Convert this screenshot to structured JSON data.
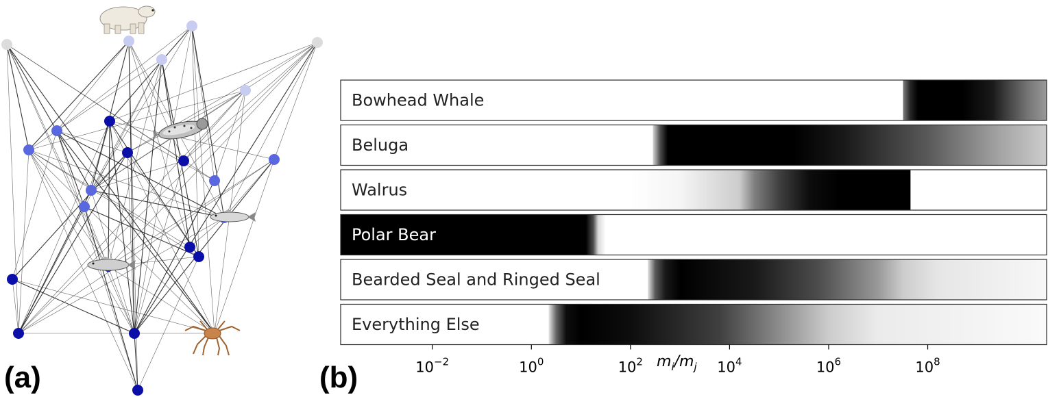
{
  "panel_a": {
    "label": "(a)",
    "animal_icons": [
      "polar-bear-icon",
      "seal-icon",
      "fish-icon",
      "fish-icon",
      "crab-icon"
    ]
  },
  "panel_b": {
    "label": "(b)",
    "xlabel_base": "m",
    "xlabel_i": "i",
    "xlabel_slash": "/m",
    "xlabel_j": "j",
    "scale": "log",
    "xlim_exp": [
      -3.85,
      10.4
    ],
    "ticks": [
      {
        "base": "10",
        "exp": "−2",
        "value": -2
      },
      {
        "base": "10",
        "exp": "0",
        "value": 0
      },
      {
        "base": "10",
        "exp": "2",
        "value": 2
      },
      {
        "base": "10",
        "exp": "4",
        "value": 4
      },
      {
        "base": "10",
        "exp": "6",
        "value": 6
      },
      {
        "base": "10",
        "exp": "8",
        "value": 8
      }
    ],
    "rows": [
      {
        "label": "Bowhead Whale",
        "label_color": "#222222",
        "profile": [
          [
            7.5,
            0.5
          ],
          [
            7.65,
            0.85
          ],
          [
            7.8,
            1
          ],
          [
            8.7,
            1
          ],
          [
            9.3,
            0.9
          ],
          [
            9.6,
            0.75
          ],
          [
            10.0,
            0.55
          ],
          [
            10.4,
            0.4
          ]
        ],
        "edge_after": null
      },
      {
        "label": "Beluga",
        "label_color": "#222222",
        "profile": [
          [
            2.45,
            0.15
          ],
          [
            2.6,
            0.7
          ],
          [
            2.75,
            1
          ],
          [
            5.3,
            1
          ],
          [
            6.3,
            0.9
          ],
          [
            8.0,
            0.65
          ],
          [
            9.5,
            0.35
          ],
          [
            10.4,
            0.2
          ]
        ],
        "edge_after": null
      },
      {
        "label": "Walrus",
        "label_color": "#222222",
        "profile": [
          [
            2.0,
            0
          ],
          [
            3.0,
            0.04
          ],
          [
            4.2,
            0.2
          ],
          [
            4.5,
            0.5
          ],
          [
            5.0,
            0.75
          ],
          [
            5.6,
            0.95
          ],
          [
            6.2,
            1
          ],
          [
            7.65,
            1
          ]
        ],
        "edge_after": 7.65
      },
      {
        "label": "Polar Bear",
        "label_color": "#ffffff",
        "profile": [
          [
            -3.85,
            1
          ],
          [
            1.1,
            1
          ],
          [
            1.25,
            0.7
          ],
          [
            1.35,
            0.15
          ],
          [
            1.5,
            0
          ]
        ],
        "edge_after": null
      },
      {
        "label": "Bearded Seal and Ringed Seal",
        "label_color": "#222222",
        "profile": [
          [
            2.35,
            0.1
          ],
          [
            2.5,
            0.65
          ],
          [
            2.7,
            0.9
          ],
          [
            3.0,
            1
          ],
          [
            4.5,
            0.9
          ],
          [
            5.8,
            0.7
          ],
          [
            7.0,
            0.4
          ],
          [
            7.5,
            0.2
          ],
          [
            8.2,
            0.1
          ],
          [
            10.4,
            0.03
          ]
        ],
        "edge_after": null
      },
      {
        "label": "Everything Else",
        "label_color": "#222222",
        "profile": [
          [
            0.35,
            0.1
          ],
          [
            0.5,
            0.6
          ],
          [
            0.7,
            0.95
          ],
          [
            1.0,
            1
          ],
          [
            2.0,
            0.95
          ],
          [
            3.8,
            0.75
          ],
          [
            5.0,
            0.45
          ],
          [
            6.0,
            0.2
          ],
          [
            7.0,
            0.08
          ],
          [
            10.4,
            0.02
          ]
        ],
        "edge_after": null
      }
    ]
  },
  "colors": {
    "node_dark": "#0b0fa8",
    "node_mid": "#5a68e0",
    "node_light": "#c8ccf0",
    "node_grey": "#dcdcdc",
    "edge": "#222222"
  }
}
